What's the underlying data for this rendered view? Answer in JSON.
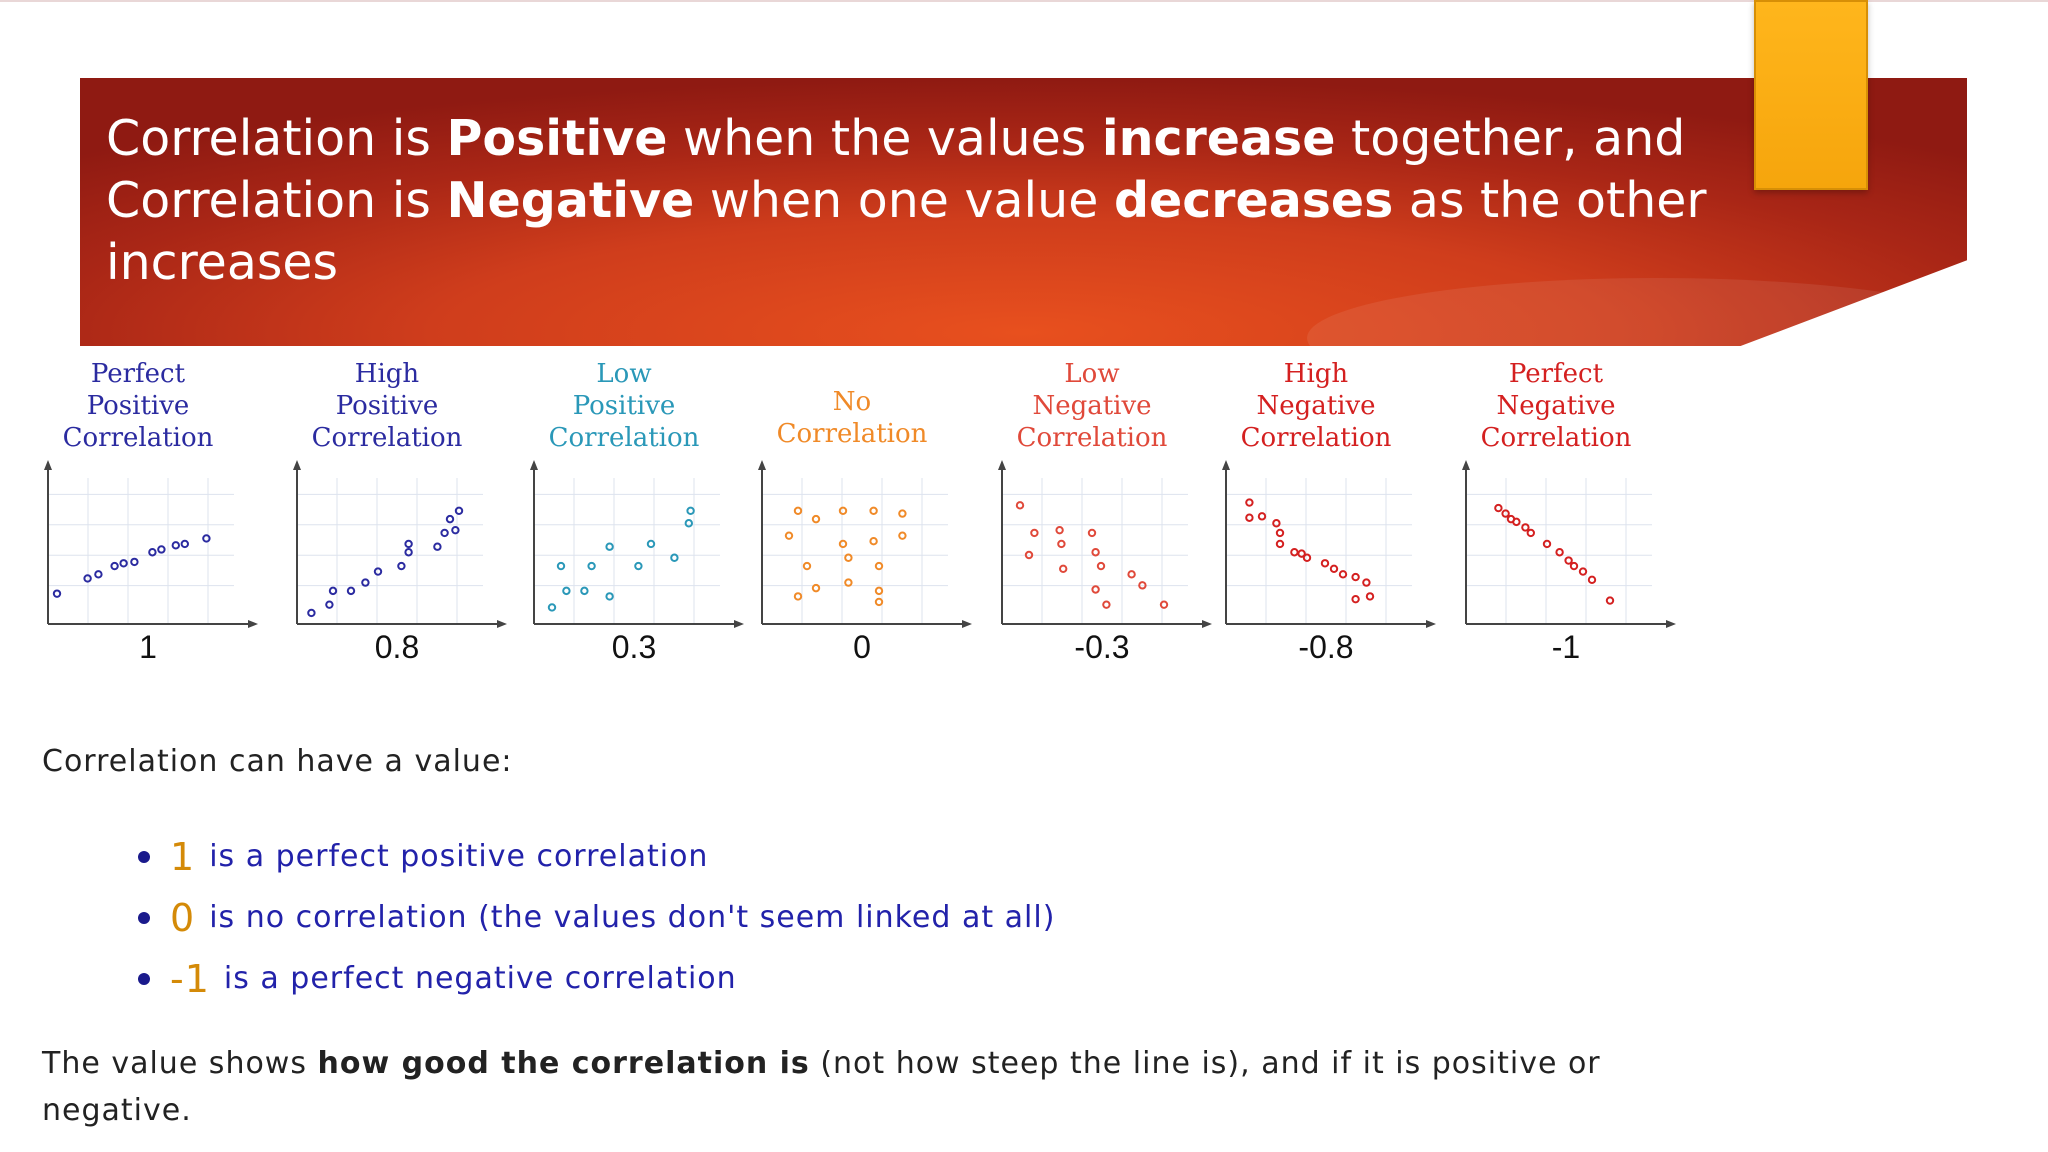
{
  "slide": {
    "title": {
      "line1": {
        "t1": "Correlation is ",
        "b1": "Positive",
        "t2": " when the values ",
        "b2": "increase",
        "t3": " together, and"
      },
      "line2": {
        "t1": "Correlation is ",
        "b1": "Negative",
        "t2": " when one value ",
        "b2": "decreases",
        "t3": " as the other"
      },
      "line3": "increases"
    },
    "intro": "Correlation can have a value:",
    "bullets": [
      {
        "value": "1",
        "text": "is a perfect positive correlation"
      },
      {
        "value": "0",
        "text": "is no correlation (the values don't seem linked at all)"
      },
      {
        "value": "-1",
        "text": "is a perfect negative correlation"
      }
    ],
    "summary": {
      "t1": "The value shows ",
      "b1": "how good the correlation is",
      "t2": " (not how steep the line is), and if it is positive or negative."
    },
    "colors": {
      "banner": "#c0321a",
      "bookmark": "#f9a81a"
    }
  },
  "chart_data": [
    {
      "type": "scatter",
      "title": "Perfect Positive Correlation",
      "label": "1",
      "color": "#2b2ba0",
      "points": [
        [
          0.05,
          0.22
        ],
        [
          0.22,
          0.33
        ],
        [
          0.28,
          0.36
        ],
        [
          0.37,
          0.42
        ],
        [
          0.42,
          0.44
        ],
        [
          0.48,
          0.45
        ],
        [
          0.58,
          0.52
        ],
        [
          0.63,
          0.54
        ],
        [
          0.71,
          0.57
        ],
        [
          0.76,
          0.58
        ],
        [
          0.88,
          0.62
        ]
      ]
    },
    {
      "type": "scatter",
      "title": "High Positive Correlation",
      "label": "0.8",
      "color": "#2b2ba0",
      "points": [
        [
          0.08,
          0.08
        ],
        [
          0.18,
          0.14
        ],
        [
          0.2,
          0.24
        ],
        [
          0.3,
          0.24
        ],
        [
          0.38,
          0.3
        ],
        [
          0.45,
          0.38
        ],
        [
          0.58,
          0.42
        ],
        [
          0.62,
          0.52
        ],
        [
          0.62,
          0.58
        ],
        [
          0.78,
          0.56
        ],
        [
          0.82,
          0.66
        ],
        [
          0.88,
          0.68
        ],
        [
          0.85,
          0.76
        ],
        [
          0.9,
          0.82
        ]
      ]
    },
    {
      "type": "scatter",
      "title": "Low Positive Correlation",
      "label": "0.3",
      "color": "#2a98b8",
      "points": [
        [
          0.1,
          0.12
        ],
        [
          0.15,
          0.42
        ],
        [
          0.18,
          0.24
        ],
        [
          0.28,
          0.24
        ],
        [
          0.32,
          0.42
        ],
        [
          0.42,
          0.2
        ],
        [
          0.42,
          0.56
        ],
        [
          0.58,
          0.42
        ],
        [
          0.65,
          0.58
        ],
        [
          0.78,
          0.48
        ],
        [
          0.86,
          0.73
        ],
        [
          0.87,
          0.82
        ]
      ]
    },
    {
      "type": "scatter",
      "title": "No Correlation",
      "label": "0",
      "color": "#f08a28",
      "points": [
        [
          0.2,
          0.82
        ],
        [
          0.45,
          0.82
        ],
        [
          0.62,
          0.82
        ],
        [
          0.78,
          0.8
        ],
        [
          0.15,
          0.64
        ],
        [
          0.3,
          0.76
        ],
        [
          0.45,
          0.58
        ],
        [
          0.62,
          0.6
        ],
        [
          0.78,
          0.64
        ],
        [
          0.25,
          0.42
        ],
        [
          0.48,
          0.48
        ],
        [
          0.65,
          0.42
        ],
        [
          0.2,
          0.2
        ],
        [
          0.3,
          0.26
        ],
        [
          0.48,
          0.3
        ],
        [
          0.65,
          0.24
        ],
        [
          0.65,
          0.16
        ]
      ]
    },
    {
      "type": "scatter",
      "title": "Low Negative Correlation",
      "label": "-0.3",
      "color": "#e0493a",
      "points": [
        [
          0.1,
          0.86
        ],
        [
          0.18,
          0.66
        ],
        [
          0.32,
          0.68
        ],
        [
          0.33,
          0.58
        ],
        [
          0.5,
          0.66
        ],
        [
          0.15,
          0.5
        ],
        [
          0.34,
          0.4
        ],
        [
          0.52,
          0.52
        ],
        [
          0.55,
          0.42
        ],
        [
          0.52,
          0.25
        ],
        [
          0.58,
          0.14
        ],
        [
          0.72,
          0.36
        ],
        [
          0.78,
          0.28
        ],
        [
          0.9,
          0.14
        ]
      ]
    },
    {
      "type": "scatter",
      "title": "High Negative Correlation",
      "label": "-0.8",
      "color": "#d42020",
      "points": [
        [
          0.13,
          0.88
        ],
        [
          0.13,
          0.77
        ],
        [
          0.2,
          0.78
        ],
        [
          0.28,
          0.73
        ],
        [
          0.3,
          0.66
        ],
        [
          0.3,
          0.58
        ],
        [
          0.38,
          0.52
        ],
        [
          0.42,
          0.51
        ],
        [
          0.45,
          0.48
        ],
        [
          0.55,
          0.44
        ],
        [
          0.6,
          0.4
        ],
        [
          0.65,
          0.36
        ],
        [
          0.72,
          0.34
        ],
        [
          0.78,
          0.3
        ],
        [
          0.72,
          0.18
        ],
        [
          0.8,
          0.2
        ]
      ]
    },
    {
      "type": "scatter",
      "title": "Perfect Negative Correlation",
      "label": "-1",
      "color": "#d42020",
      "points": [
        [
          0.18,
          0.84
        ],
        [
          0.22,
          0.8
        ],
        [
          0.25,
          0.76
        ],
        [
          0.28,
          0.74
        ],
        [
          0.33,
          0.7
        ],
        [
          0.36,
          0.66
        ],
        [
          0.45,
          0.58
        ],
        [
          0.52,
          0.52
        ],
        [
          0.57,
          0.46
        ],
        [
          0.6,
          0.42
        ],
        [
          0.65,
          0.38
        ],
        [
          0.7,
          0.32
        ],
        [
          0.8,
          0.17
        ]
      ]
    }
  ]
}
